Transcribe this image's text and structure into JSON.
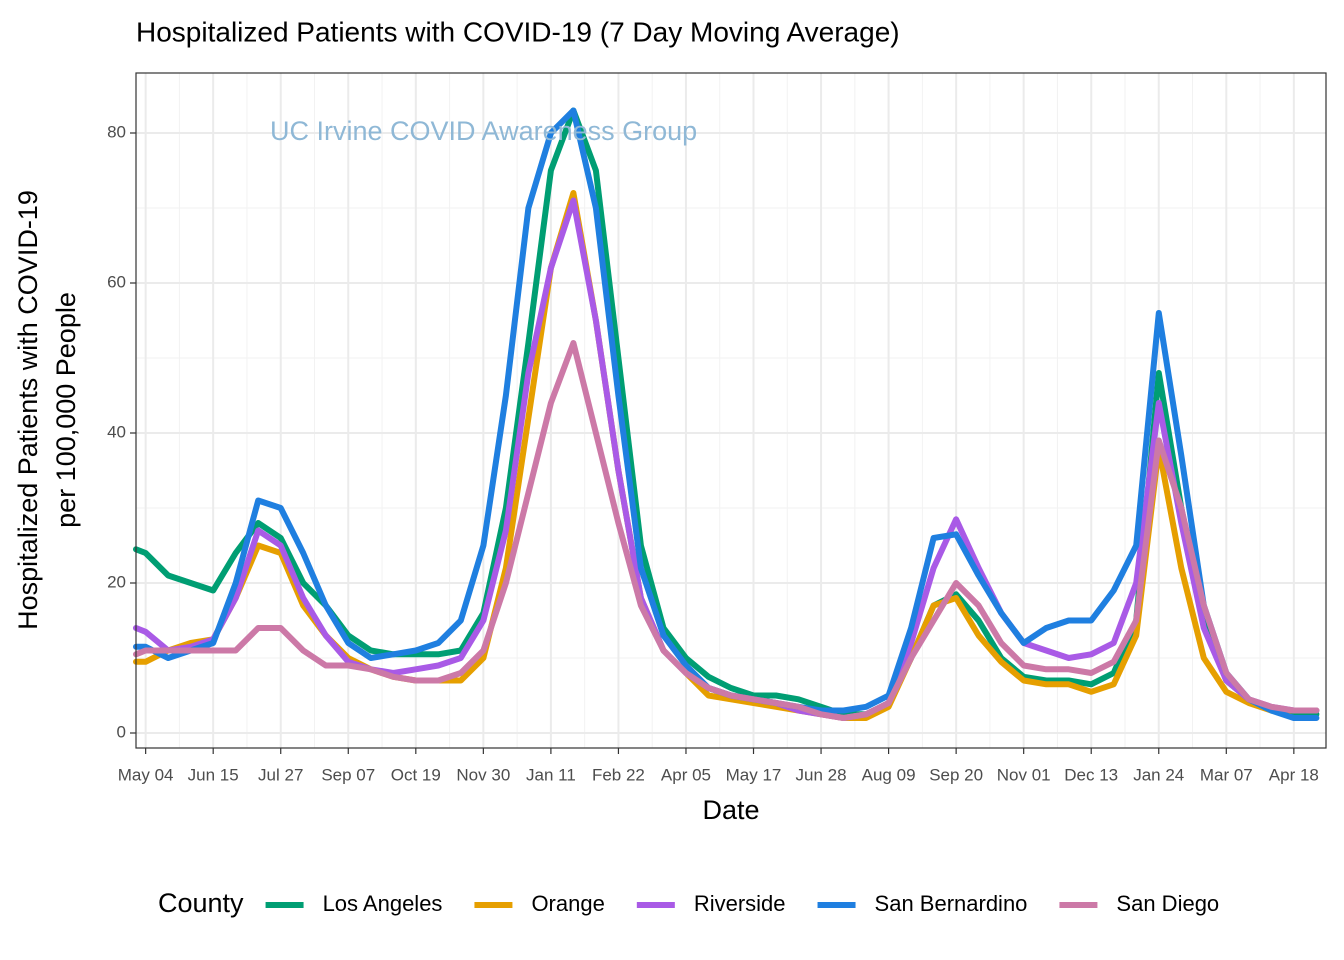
{
  "chart_data": {
    "type": "line",
    "title": "Hospitalized Patients with COVID-19 (7 Day Moving Average)",
    "annotation": "UC Irvine COVID Awareness Group",
    "xlabel": "Date",
    "ylabel": [
      "Hospitalized Patients with COVID-19",
      "per 100,000 People"
    ],
    "legend_title": "County",
    "legend_position": "bottom",
    "grid": true,
    "x": [
      -6,
      0,
      14,
      28,
      42,
      56,
      70,
      84,
      98,
      112,
      126,
      140,
      154,
      168,
      182,
      196,
      210,
      224,
      238,
      252,
      266,
      280,
      294,
      308,
      322,
      336,
      350,
      364,
      378,
      392,
      406,
      420,
      434,
      448,
      462,
      476,
      490,
      504,
      518,
      532,
      546,
      560,
      574,
      588,
      602,
      616,
      630,
      644,
      658,
      672,
      686,
      700,
      714,
      728
    ],
    "xlim": [
      -6,
      734
    ],
    "xticks": [
      {
        "value": 0,
        "label": "May 04"
      },
      {
        "value": 42,
        "label": "Jun 15"
      },
      {
        "value": 84,
        "label": "Jul 27"
      },
      {
        "value": 126,
        "label": "Sep 07"
      },
      {
        "value": 168,
        "label": "Oct 19"
      },
      {
        "value": 210,
        "label": "Nov 30"
      },
      {
        "value": 252,
        "label": "Jan 11"
      },
      {
        "value": 294,
        "label": "Feb 22"
      },
      {
        "value": 336,
        "label": "Apr 05"
      },
      {
        "value": 378,
        "label": "May 17"
      },
      {
        "value": 420,
        "label": "Jun 28"
      },
      {
        "value": 462,
        "label": "Aug 09"
      },
      {
        "value": 504,
        "label": "Sep 20"
      },
      {
        "value": 546,
        "label": "Nov 01"
      },
      {
        "value": 588,
        "label": "Dec 13"
      },
      {
        "value": 630,
        "label": "Jan 24"
      },
      {
        "value": 672,
        "label": "Mar 07"
      },
      {
        "value": 714,
        "label": "Apr 18"
      }
    ],
    "ylim": [
      -2,
      88
    ],
    "yticks": [
      0,
      20,
      40,
      60,
      80
    ],
    "series": [
      {
        "name": "Los Angeles",
        "color": "#009E73",
        "values": [
          24.5,
          24,
          21,
          20,
          19,
          24,
          28,
          26,
          20,
          17,
          13,
          11,
          10.5,
          10.5,
          10.5,
          11,
          16,
          30,
          52,
          75,
          83,
          75,
          50,
          25,
          14,
          10,
          7.5,
          6,
          5,
          5,
          4.5,
          3.5,
          2.5,
          2.5,
          4,
          10,
          17,
          18.5,
          15,
          10,
          7.5,
          7,
          7,
          6.5,
          8,
          15,
          48,
          30,
          15,
          7,
          4.5,
          3,
          2.5,
          2.5
        ]
      },
      {
        "name": "Orange",
        "color": "#E69F00",
        "values": [
          9.5,
          9.5,
          11,
          12,
          12.5,
          18,
          25,
          24,
          17,
          13,
          10,
          8.5,
          7.5,
          7,
          7,
          7,
          10,
          22,
          42,
          62,
          72,
          55,
          35,
          18,
          11,
          8,
          5,
          4.5,
          4,
          3.5,
          3,
          2.5,
          2,
          2,
          3.5,
          10,
          17,
          18,
          13,
          9.5,
          7,
          6.5,
          6.5,
          5.5,
          6.5,
          13,
          38,
          22,
          10,
          5.5,
          4,
          3,
          3,
          3
        ]
      },
      {
        "name": "Riverside",
        "color": "#A95AE6",
        "values": [
          14,
          13.5,
          11,
          11.5,
          12.5,
          18,
          27,
          25,
          18,
          13,
          9.5,
          8.5,
          8,
          8.5,
          9,
          10,
          15,
          27,
          48,
          62,
          71,
          55,
          35,
          18,
          11,
          8,
          6,
          5,
          4.5,
          4,
          3,
          2.5,
          2,
          2.5,
          4,
          12,
          22,
          28.5,
          22,
          16,
          12,
          11,
          10,
          10.5,
          12,
          20,
          44,
          28,
          14,
          7,
          4.5,
          3.5,
          3,
          3
        ]
      },
      {
        "name": "San Bernardino",
        "color": "#1F7FE0",
        "values": [
          11.5,
          11.5,
          10,
          11,
          12,
          20,
          31,
          30,
          24,
          17,
          12,
          10,
          10.5,
          11,
          12,
          15,
          25,
          45,
          70,
          80,
          83,
          70,
          45,
          22,
          13,
          9,
          6,
          5,
          4.5,
          4,
          3.5,
          3,
          3,
          3.5,
          5,
          14,
          26,
          26.5,
          21,
          16,
          12,
          14,
          15,
          15,
          19,
          25,
          56,
          37,
          17,
          8,
          4.5,
          3,
          2,
          2
        ]
      },
      {
        "name": "San Diego",
        "color": "#CC79A7",
        "values": [
          10.5,
          11,
          11,
          11,
          11,
          11,
          14,
          14,
          11,
          9,
          9,
          8.5,
          7.5,
          7,
          7,
          8,
          11,
          20,
          32,
          44,
          52,
          40,
          28,
          17,
          11,
          8,
          6,
          5,
          4.5,
          4,
          3.5,
          2.5,
          2,
          2.5,
          4,
          10,
          15,
          20,
          17,
          12,
          9,
          8.5,
          8.5,
          8,
          9.5,
          15,
          39,
          30,
          17,
          8,
          4.5,
          3.5,
          3,
          3
        ]
      }
    ]
  }
}
